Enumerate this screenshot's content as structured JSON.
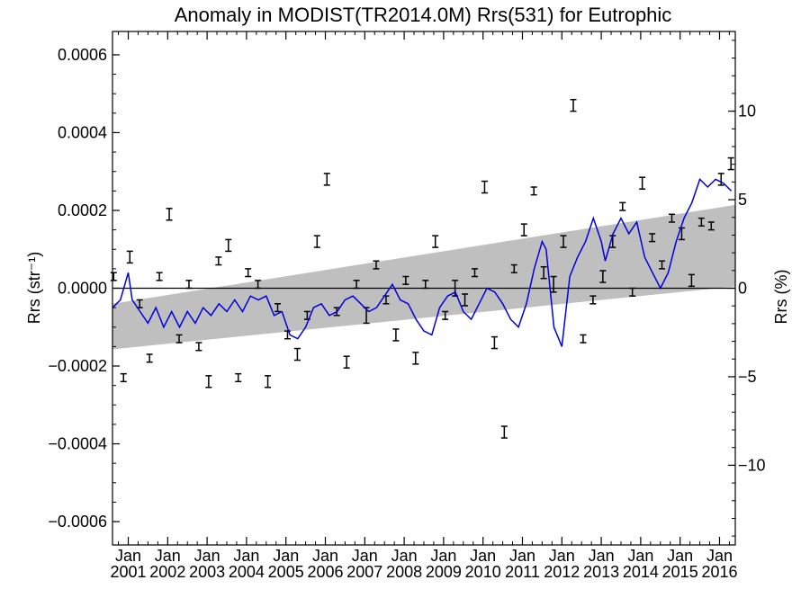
{
  "chart_data": {
    "type": "scatter",
    "title": "Anomaly in MODIST(TR2014.0M) Rrs(531) for Eutrophic",
    "ylabel": "Rrs (str⁻¹)",
    "ylabel_right": "Rrs (%)",
    "xlabel": "",
    "xlim": [
      2000.6,
      2016.4
    ],
    "ylim": [
      -0.00066,
      0.00066
    ],
    "ylim_right": [
      -14.5,
      14.5
    ],
    "yticks": [
      -0.0006,
      -0.0004,
      -0.0002,
      0.0,
      0.0002,
      0.0004,
      0.0006
    ],
    "ytick_labels": [
      "−0.0006",
      "−0.0004",
      "−0.0002",
      "0.0000",
      "0.0002",
      "0.0004",
      "0.0006"
    ],
    "yticks_right": [
      -10,
      -5,
      0,
      5,
      10
    ],
    "ytick_right_labels": [
      "−10",
      "−5",
      "0",
      "5",
      "10"
    ],
    "xtick_top_label": "Jan",
    "xticks": [
      2001,
      2002,
      2003,
      2004,
      2005,
      2006,
      2007,
      2008,
      2009,
      2010,
      2011,
      2012,
      2013,
      2014,
      2015,
      2016
    ],
    "xtick_labels": [
      "2001",
      "2002",
      "2003",
      "2004",
      "2005",
      "2006",
      "2007",
      "2008",
      "2009",
      "2010",
      "2011",
      "2012",
      "2013",
      "2014",
      "2015",
      "2016"
    ],
    "trend_band": {
      "start": [
        -0.000157,
        -4e-05
      ],
      "end": [
        4.5e-06,
        0.000214
      ]
    },
    "series": [
      {
        "type": "errorbar",
        "color": "#000000",
        "x": [
          2000.63,
          2000.88,
          2001.04,
          2001.29,
          2001.54,
          2001.79,
          2002.04,
          2002.29,
          2002.54,
          2002.79,
          2003.04,
          2003.29,
          2003.54,
          2003.79,
          2004.04,
          2004.29,
          2004.54,
          2004.79,
          2005.04,
          2005.29,
          2005.54,
          2005.79,
          2006.04,
          2006.29,
          2006.54,
          2006.79,
          2007.04,
          2007.29,
          2007.54,
          2007.79,
          2008.04,
          2008.29,
          2008.54,
          2008.79,
          2009.04,
          2009.29,
          2009.54,
          2009.79,
          2010.04,
          2010.29,
          2010.54,
          2010.79,
          2011.04,
          2011.29,
          2011.54,
          2011.79,
          2012.04,
          2012.29,
          2012.54,
          2012.79,
          2013.04,
          2013.29,
          2013.54,
          2013.79,
          2014.04,
          2014.29,
          2014.54,
          2014.79,
          2015.04,
          2015.29,
          2015.54,
          2015.79,
          2016.04,
          2016.29
        ],
        "y": [
          3e-05,
          -0.00023,
          8e-05,
          -4e-05,
          -0.00018,
          3e-05,
          0.00019,
          -0.00013,
          1e-05,
          -0.00015,
          -0.00024,
          7e-05,
          0.00011,
          -0.00023,
          4e-05,
          1e-05,
          -0.00024,
          -5e-05,
          -0.00012,
          -0.00017,
          -7e-05,
          0.00012,
          0.00028,
          -6e-05,
          -0.00019,
          1e-05,
          -7e-05,
          6e-05,
          -3e-05,
          -0.00012,
          2e-05,
          -0.00018,
          1e-05,
          0.00012,
          -7e-05,
          0.0,
          -3e-05,
          4e-05,
          0.00026,
          -0.00014,
          -0.00037,
          5e-05,
          0.00015,
          0.00025,
          4e-05,
          1e-05,
          0.00012,
          0.00047,
          -0.00013,
          -3e-05,
          3e-05,
          0.00012,
          0.00021,
          -1e-05,
          0.00027,
          0.00013,
          6e-05,
          0.00018,
          0.00014,
          2e-05,
          0.00017,
          0.00016,
          0.00028,
          0.00032
        ],
        "err": [
          1e-05,
          1e-05,
          1.5e-05,
          1e-05,
          1e-05,
          1e-05,
          1.5e-05,
          1e-05,
          1e-05,
          1e-05,
          1.5e-05,
          1e-05,
          1.5e-05,
          1e-05,
          1e-05,
          1e-05,
          1.5e-05,
          1e-05,
          1e-05,
          1.5e-05,
          1e-05,
          1.5e-05,
          1.5e-05,
          1e-05,
          1.5e-05,
          1e-05,
          2e-05,
          1e-05,
          1e-05,
          1.5e-05,
          1e-05,
          1.5e-05,
          1e-05,
          1.5e-05,
          1e-05,
          2e-05,
          1.5e-05,
          1e-05,
          1.5e-05,
          1.5e-05,
          1.5e-05,
          1e-05,
          1.5e-05,
          1e-05,
          1.5e-05,
          2e-05,
          1.5e-05,
          1.5e-05,
          1e-05,
          1e-05,
          1.5e-05,
          1.5e-05,
          1e-05,
          1e-05,
          1.5e-05,
          1e-05,
          1e-05,
          1e-05,
          1.5e-05,
          1.5e-05,
          1e-05,
          1e-05,
          1.5e-05,
          1.5e-05
        ]
      },
      {
        "type": "line",
        "color": "#0000dd",
        "x": [
          2000.6,
          2000.8,
          2001.0,
          2001.1,
          2001.3,
          2001.5,
          2001.7,
          2001.9,
          2002.1,
          2002.3,
          2002.5,
          2002.7,
          2002.9,
          2003.1,
          2003.3,
          2003.5,
          2003.7,
          2003.9,
          2004.1,
          2004.3,
          2004.5,
          2004.7,
          2004.9,
          2005.1,
          2005.3,
          2005.5,
          2005.7,
          2005.9,
          2006.1,
          2006.3,
          2006.5,
          2006.7,
          2006.9,
          2007.1,
          2007.3,
          2007.5,
          2007.7,
          2007.9,
          2008.1,
          2008.3,
          2008.5,
          2008.7,
          2008.9,
          2009.1,
          2009.3,
          2009.5,
          2009.7,
          2009.9,
          2010.1,
          2010.3,
          2010.5,
          2010.7,
          2010.9,
          2011.1,
          2011.3,
          2011.5,
          2011.6,
          2011.8,
          2012.0,
          2012.2,
          2012.4,
          2012.6,
          2012.8,
          2013.0,
          2013.1,
          2013.3,
          2013.5,
          2013.7,
          2013.9,
          2014.1,
          2014.3,
          2014.5,
          2014.7,
          2014.9,
          2015.1,
          2015.3,
          2015.5,
          2015.7,
          2015.9,
          2016.1,
          2016.3
        ],
        "y": [
          -5e-05,
          -3e-05,
          4e-05,
          -3e-05,
          -6e-05,
          -9e-05,
          -5e-05,
          -0.0001,
          -6e-05,
          -0.0001,
          -6e-05,
          -9e-05,
          -5e-05,
          -7e-05,
          -4e-05,
          -6e-05,
          -3e-05,
          -6e-05,
          -2e-05,
          -3e-05,
          -2e-05,
          -7e-05,
          -6e-05,
          -0.00012,
          -0.00013,
          -0.0001,
          -5e-05,
          -4e-05,
          -7e-05,
          -6e-05,
          -3e-05,
          -2e-05,
          -4e-05,
          -6e-05,
          -5e-05,
          -2e-05,
          1e-05,
          -3e-05,
          -4e-05,
          -8e-05,
          -0.00011,
          -0.00012,
          -5e-05,
          -2e-05,
          -1e-05,
          -6e-05,
          -8e-05,
          -4e-05,
          0.0,
          -1e-05,
          -4e-05,
          -8e-05,
          -0.0001,
          -4e-05,
          5e-05,
          0.00012,
          0.0001,
          -0.0001,
          -0.00015,
          3e-05,
          8e-05,
          0.00012,
          0.00018,
          0.00012,
          7e-05,
          0.00014,
          0.00018,
          0.00014,
          0.00017,
          8e-05,
          4e-05,
          0.0,
          4e-05,
          0.00012,
          0.00018,
          0.00022,
          0.00028,
          0.00026,
          0.00028,
          0.00027,
          0.00025
        ]
      }
    ]
  }
}
